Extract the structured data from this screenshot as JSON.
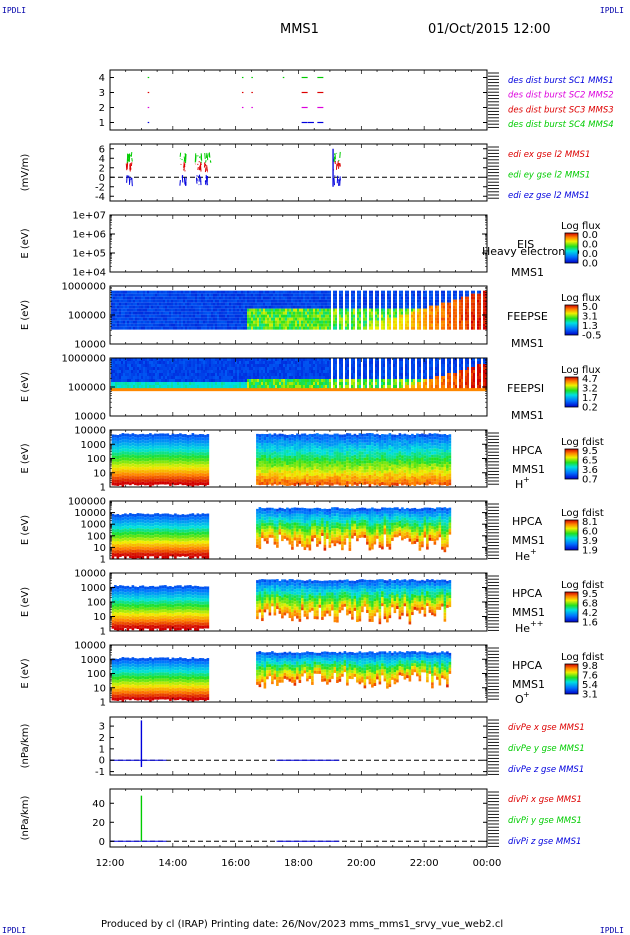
{
  "header": {
    "corner_tl": "IPDLI",
    "corner_tr": "IPDLI",
    "corner_bl": "IPDLI",
    "corner_br": "IPDLI",
    "title": "MMS1",
    "date": "01/Oct/2015 12:00"
  },
  "footer": "Produced by cl (IRAP)   Printing date: 26/Nov/2023   mms_mms1_srvy_vue_web2.cl",
  "x_axis": {
    "ticks": [
      "12:00",
      "14:00",
      "16:00",
      "18:00",
      "20:00",
      "22:00",
      "00:00"
    ]
  },
  "chart_data": [
    {
      "type": "line",
      "id": "burst",
      "ylabel": "",
      "yticks": [
        "1",
        "2",
        "3",
        "4"
      ],
      "ylim": [
        0.5,
        4.5
      ],
      "series": [
        {
          "name": "des dist burst SC1 MMS1",
          "color": "#0000dd",
          "y": 1,
          "x": [
            13.2,
            18.1,
            18.3,
            18.6
          ]
        },
        {
          "name": "des dist burst SC2 MMS2",
          "color": "#dd00dd",
          "y": 2,
          "x": [
            13.2,
            16.2,
            16.5,
            18.1,
            18.6
          ]
        },
        {
          "name": "des dist burst SC3 MMS3",
          "color": "#dd0000",
          "y": 3,
          "x": [
            13.2,
            16.2,
            16.5,
            18.1,
            18.6
          ]
        },
        {
          "name": "des dist burst SC4 MMS4",
          "color": "#00cc00",
          "y": 4,
          "x": [
            13.2,
            16.2,
            16.5,
            17.5,
            18.1,
            18.6
          ]
        }
      ]
    },
    {
      "type": "line",
      "id": "edi",
      "ylabel": "(mV/m)",
      "yticks": [
        "-4",
        "-2",
        "0",
        "2",
        "4",
        "6"
      ],
      "ylim": [
        -5,
        7
      ],
      "series": [
        {
          "name": "edi ex gse l2 MMS1",
          "color": "#dd0000"
        },
        {
          "name": "edi ey gse l2 MMS1",
          "color": "#00cc00"
        },
        {
          "name": "edi ez gse l2 MMS1",
          "color": "#0000dd"
        }
      ],
      "bursts": [
        12.5,
        14.2,
        14.7,
        15.0,
        19.1
      ]
    },
    {
      "type": "heatmap",
      "id": "eis",
      "ylabel": "E (eV)",
      "yticks": [
        "1e+04",
        "1e+05",
        "1e+06",
        "1e+07"
      ],
      "labels": [
        "EIS",
        "MMS1"
      ],
      "overlay_text": "Heavy electron to",
      "cbar_title": "Log flux",
      "cbar_ticks": [
        "0.0",
        "0.0",
        "0.0",
        "0.0"
      ]
    },
    {
      "type": "heatmap",
      "id": "feepse",
      "ylabel": "E (eV)",
      "yticks": [
        "10000",
        "100000",
        "1000000"
      ],
      "labels": [
        "FEEPSE",
        "MMS1"
      ],
      "cbar_title": "Log flux",
      "cbar_ticks": [
        "5.0",
        "3.1",
        "1.3",
        "-0.5"
      ]
    },
    {
      "type": "heatmap",
      "id": "feepsi",
      "ylabel": "E (eV)",
      "yticks": [
        "10000",
        "100000",
        "1000000"
      ],
      "labels": [
        "FEEPSI",
        "MMS1"
      ],
      "cbar_title": "Log flux",
      "cbar_ticks": [
        "4.7",
        "3.2",
        "1.7",
        "0.2"
      ]
    },
    {
      "type": "heatmap",
      "id": "hpca_h",
      "ylabel": "E (eV)",
      "yticks": [
        "1",
        "10",
        "100",
        "1000",
        "10000"
      ],
      "labels": [
        "HPCA",
        "MMS1",
        "H",
        "+"
      ],
      "cbar_title": "Log fdist",
      "cbar_ticks": [
        "9.5",
        "6.5",
        "3.6",
        "0.7"
      ]
    },
    {
      "type": "heatmap",
      "id": "hpca_he",
      "ylabel": "E (eV)",
      "yticks": [
        "1",
        "10",
        "100",
        "1000",
        "10000",
        "100000"
      ],
      "labels": [
        "HPCA",
        "MMS1",
        "He",
        "+"
      ],
      "cbar_title": "Log fdist",
      "cbar_ticks": [
        "8.1",
        "6.0",
        "3.9",
        "1.9"
      ]
    },
    {
      "type": "heatmap",
      "id": "hpca_hepp",
      "ylabel": "E (eV)",
      "yticks": [
        "1",
        "10",
        "100",
        "1000",
        "10000"
      ],
      "labels": [
        "HPCA",
        "MMS1",
        "He",
        "++"
      ],
      "cbar_title": "Log fdist",
      "cbar_ticks": [
        "9.5",
        "6.8",
        "4.2",
        "1.6"
      ]
    },
    {
      "type": "heatmap",
      "id": "hpca_o",
      "ylabel": "E (eV)",
      "yticks": [
        "1",
        "10",
        "100",
        "1000",
        "10000"
      ],
      "labels": [
        "HPCA",
        "MMS1",
        "O",
        "+"
      ],
      "cbar_title": "Log fdist",
      "cbar_ticks": [
        "9.8",
        "7.6",
        "5.4",
        "3.1"
      ]
    },
    {
      "type": "line",
      "id": "divpe",
      "ylabel": "(nPa/km)",
      "yticks": [
        "-1",
        "0",
        "1",
        "2",
        "3"
      ],
      "ylim": [
        -1.3,
        3.8
      ],
      "series": [
        {
          "name": "divPe x gse MMS1",
          "color": "#dd0000"
        },
        {
          "name": "divPe y gse MMS1",
          "color": "#00cc00"
        },
        {
          "name": "divPe z gse MMS1",
          "color": "#0000dd"
        }
      ],
      "spike": {
        "x": 13.0,
        "y_top": 3.5,
        "y_bottom": -0.6,
        "color": "#0000dd"
      }
    },
    {
      "type": "line",
      "id": "divpi",
      "ylabel": "(nPa/km)",
      "yticks": [
        "0",
        "20",
        "40"
      ],
      "ylim": [
        -6,
        55
      ],
      "series": [
        {
          "name": "divPi x gse MMS1",
          "color": "#dd0000"
        },
        {
          "name": "divPi y gse MMS1",
          "color": "#00cc00"
        },
        {
          "name": "divPi z gse MMS1",
          "color": "#0000dd"
        }
      ],
      "spike": {
        "x": 13.0,
        "y_top": 48,
        "y_bottom": 0,
        "color": "#00cc00"
      }
    }
  ]
}
